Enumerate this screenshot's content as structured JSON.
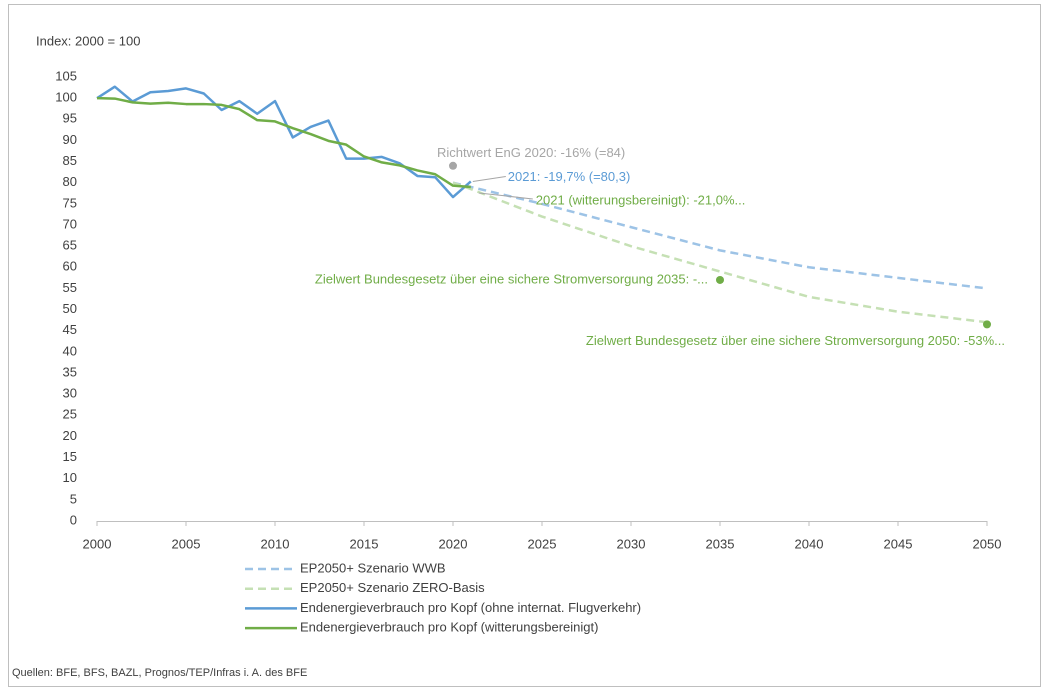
{
  "chart_data": {
    "type": "line",
    "y_axis_label": "Index: 2000 = 100",
    "source": "Quellen: BFE, BFS, BAZL, Prognos/TEP/Infras i. A. des BFE",
    "x": [
      2000,
      2001,
      2002,
      2003,
      2004,
      2005,
      2006,
      2007,
      2008,
      2009,
      2010,
      2011,
      2012,
      2013,
      2014,
      2015,
      2016,
      2017,
      2018,
      2019,
      2020,
      2021,
      2025,
      2030,
      2035,
      2040,
      2045,
      2050
    ],
    "xlim": [
      2000,
      2050
    ],
    "xticks": [
      2000,
      2005,
      2010,
      2015,
      2020,
      2025,
      2030,
      2035,
      2040,
      2045,
      2050
    ],
    "ylim": [
      0,
      105
    ],
    "yticks": [
      0,
      5,
      10,
      15,
      20,
      25,
      30,
      35,
      40,
      45,
      50,
      55,
      60,
      65,
      70,
      75,
      80,
      85,
      90,
      95,
      100,
      105
    ],
    "series": [
      {
        "name": "EP2050+ Szenario WWB",
        "color": "#9dc3e6",
        "dashed": true,
        "values": [
          null,
          null,
          null,
          null,
          null,
          null,
          null,
          null,
          null,
          null,
          null,
          null,
          null,
          null,
          null,
          null,
          null,
          null,
          null,
          null,
          80,
          79,
          75,
          69.5,
          64,
          60,
          57.5,
          55
        ]
      },
      {
        "name": "EP2050+ Szenario ZERO-Basis",
        "color": "#c5e0b4",
        "dashed": true,
        "values": [
          null,
          null,
          null,
          null,
          null,
          null,
          null,
          null,
          null,
          null,
          null,
          null,
          null,
          null,
          null,
          null,
          null,
          null,
          null,
          null,
          80,
          78.5,
          72,
          65,
          59,
          53,
          49.5,
          47
        ]
      },
      {
        "name": "Endenergieverbrauch pro Kopf (ohne internat. Flugverkehr)",
        "color": "#5b9bd5",
        "dashed": false,
        "values": [
          100,
          102.7,
          99.2,
          101.4,
          101.7,
          102.3,
          101.1,
          97.2,
          99.3,
          96.3,
          99.3,
          90.7,
          93.2,
          94.7,
          85.7,
          85.7,
          86.1,
          84.6,
          81.6,
          81.3,
          76.6,
          80.3,
          null,
          null,
          null,
          null,
          null,
          null
        ]
      },
      {
        "name": "Endenergieverbrauch pro Kopf (witterungsbereinigt)",
        "color": "#70ad47",
        "dashed": false,
        "values": [
          100,
          99.9,
          99.0,
          98.7,
          98.9,
          98.6,
          98.6,
          98.4,
          97.4,
          94.8,
          94.5,
          92.9,
          91.5,
          89.9,
          89.0,
          86.2,
          84.8,
          84.1,
          82.9,
          82.0,
          79.3,
          79.0,
          null,
          null,
          null,
          null,
          null,
          null
        ]
      }
    ],
    "annotations": [
      {
        "text": "Richtwert EnG 2020: -16% (=84)",
        "x": 2020,
        "y": 84,
        "color": "#a6a6a6",
        "marker": true
      },
      {
        "text": "2021: -19,7% (=80,3)",
        "x": 2021,
        "y": 80.3,
        "color": "#5b9bd5",
        "marker": false
      },
      {
        "text": "2021 (witterungsbereinigt): -21,0%...",
        "x": 2021,
        "y": 79,
        "color": "#70ad47",
        "marker": false
      },
      {
        "text": "Zielwert Bundesgesetz über eine sichere Stromversorgung 2035: -...",
        "x": 2035,
        "y": 57,
        "color": "#70ad47",
        "marker": true
      },
      {
        "text": "Zielwert Bundesgesetz über eine sichere Stromversorgung 2050: -53%...",
        "x": 2050,
        "y": 46.5,
        "color": "#70ad47",
        "marker": true
      }
    ]
  }
}
